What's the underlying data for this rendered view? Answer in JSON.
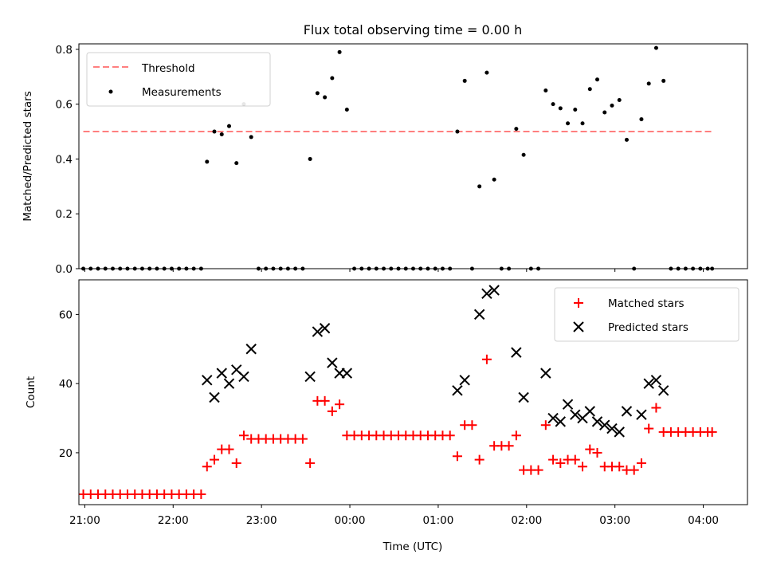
{
  "chart_data": [
    {
      "type": "scatter",
      "title": "Flux total observing time = 0.00 h",
      "xlabel": "",
      "ylabel": "Matched/Predicted stars",
      "xlim": [
        "20:56",
        "04:30"
      ],
      "ylim": [
        0,
        0.82
      ],
      "yticks": [
        "0.0",
        "0.2",
        "0.4",
        "0.6",
        "0.8"
      ],
      "grid": false,
      "legend_position": "top-left",
      "threshold": {
        "name": "Threshold",
        "value": 0.5,
        "x_range": [
          "20:59",
          "04:07"
        ],
        "color": "#ff7f7f",
        "style": "dashed"
      },
      "series": [
        {
          "name": "Measurements",
          "color": "#000000",
          "marker": "dot",
          "points": [
            [
              "20:59",
              0
            ],
            [
              "21:04",
              0
            ],
            [
              "21:09",
              0
            ],
            [
              "21:14",
              0
            ],
            [
              "21:19",
              0
            ],
            [
              "21:24",
              0
            ],
            [
              "21:29",
              0
            ],
            [
              "21:34",
              0
            ],
            [
              "21:39",
              0
            ],
            [
              "21:44",
              0
            ],
            [
              "21:49",
              0
            ],
            [
              "21:54",
              0
            ],
            [
              "21:59",
              0
            ],
            [
              "22:04",
              0
            ],
            [
              "22:09",
              0
            ],
            [
              "22:14",
              0
            ],
            [
              "22:19",
              0
            ],
            [
              "22:23",
              0.39
            ],
            [
              "22:28",
              0.5
            ],
            [
              "22:33",
              0.49
            ],
            [
              "22:38",
              0.52
            ],
            [
              "22:43",
              0.385
            ],
            [
              "22:48",
              0.6
            ],
            [
              "22:53",
              0.48
            ],
            [
              "22:58",
              0
            ],
            [
              "23:03",
              0
            ],
            [
              "23:08",
              0
            ],
            [
              "23:13",
              0
            ],
            [
              "23:18",
              0
            ],
            [
              "23:23",
              0
            ],
            [
              "23:28",
              0
            ],
            [
              "23:33",
              0.4
            ],
            [
              "23:38",
              0.64
            ],
            [
              "23:43",
              0.625
            ],
            [
              "23:48",
              0.695
            ],
            [
              "23:53",
              0.79
            ],
            [
              "23:58",
              0.58
            ],
            [
              "00:03",
              0
            ],
            [
              "00:08",
              0
            ],
            [
              "00:13",
              0
            ],
            [
              "00:18",
              0
            ],
            [
              "00:23",
              0
            ],
            [
              "00:28",
              0
            ],
            [
              "00:33",
              0
            ],
            [
              "00:38",
              0
            ],
            [
              "00:43",
              0
            ],
            [
              "00:48",
              0
            ],
            [
              "00:53",
              0
            ],
            [
              "00:58",
              0
            ],
            [
              "01:03",
              0
            ],
            [
              "01:08",
              0
            ],
            [
              "01:13",
              0.5
            ],
            [
              "01:18",
              0.685
            ],
            [
              "01:23",
              0
            ],
            [
              "01:28",
              0.3
            ],
            [
              "01:33",
              0.715
            ],
            [
              "01:38",
              0.325
            ],
            [
              "01:43",
              0
            ],
            [
              "01:48",
              0
            ],
            [
              "01:53",
              0.51
            ],
            [
              "01:58",
              0.415
            ],
            [
              "02:03",
              0
            ],
            [
              "02:08",
              0
            ],
            [
              "02:13",
              0.65
            ],
            [
              "02:18",
              0.6
            ],
            [
              "02:23",
              0.585
            ],
            [
              "02:28",
              0.53
            ],
            [
              "02:33",
              0.58
            ],
            [
              "02:38",
              0.53
            ],
            [
              "02:43",
              0.655
            ],
            [
              "02:48",
              0.69
            ],
            [
              "02:53",
              0.57
            ],
            [
              "02:58",
              0.595
            ],
            [
              "03:03",
              0.615
            ],
            [
              "03:08",
              0.47
            ],
            [
              "03:13",
              0
            ],
            [
              "03:18",
              0.545
            ],
            [
              "03:23",
              0.675
            ],
            [
              "03:28",
              0.805
            ],
            [
              "03:33",
              0.685
            ],
            [
              "03:38",
              0
            ],
            [
              "03:43",
              0
            ],
            [
              "03:48",
              0
            ],
            [
              "03:53",
              0
            ],
            [
              "03:58",
              0
            ],
            [
              "04:03",
              0
            ],
            [
              "04:06",
              0
            ]
          ]
        }
      ]
    },
    {
      "type": "scatter",
      "title": "",
      "xlabel": "Time (UTC)",
      "ylabel": "Count",
      "xlim": [
        "20:56",
        "04:30"
      ],
      "ylim": [
        5,
        70
      ],
      "yticks": [
        "20",
        "40",
        "60"
      ],
      "xticks": [
        "21:00",
        "22:00",
        "23:00",
        "00:00",
        "01:00",
        "02:00",
        "03:00",
        "04:00"
      ],
      "grid": false,
      "legend_position": "top-right",
      "series": [
        {
          "name": "Matched stars",
          "color": "#ff0000",
          "marker": "plus",
          "points": [
            [
              "20:59",
              8
            ],
            [
              "21:04",
              8
            ],
            [
              "21:09",
              8
            ],
            [
              "21:14",
              8
            ],
            [
              "21:19",
              8
            ],
            [
              "21:24",
              8
            ],
            [
              "21:29",
              8
            ],
            [
              "21:34",
              8
            ],
            [
              "21:39",
              8
            ],
            [
              "21:44",
              8
            ],
            [
              "21:49",
              8
            ],
            [
              "21:54",
              8
            ],
            [
              "21:59",
              8
            ],
            [
              "22:04",
              8
            ],
            [
              "22:09",
              8
            ],
            [
              "22:14",
              8
            ],
            [
              "22:19",
              8
            ],
            [
              "22:23",
              16
            ],
            [
              "22:28",
              18
            ],
            [
              "22:33",
              21
            ],
            [
              "22:38",
              21
            ],
            [
              "22:43",
              17
            ],
            [
              "22:48",
              25
            ],
            [
              "22:53",
              24
            ],
            [
              "22:58",
              24
            ],
            [
              "23:03",
              24
            ],
            [
              "23:08",
              24
            ],
            [
              "23:13",
              24
            ],
            [
              "23:18",
              24
            ],
            [
              "23:23",
              24
            ],
            [
              "23:28",
              24
            ],
            [
              "23:33",
              17
            ],
            [
              "23:38",
              35
            ],
            [
              "23:43",
              35
            ],
            [
              "23:48",
              32
            ],
            [
              "23:53",
              34
            ],
            [
              "23:58",
              25
            ],
            [
              "00:03",
              25
            ],
            [
              "00:08",
              25
            ],
            [
              "00:13",
              25
            ],
            [
              "00:18",
              25
            ],
            [
              "00:23",
              25
            ],
            [
              "00:28",
              25
            ],
            [
              "00:33",
              25
            ],
            [
              "00:38",
              25
            ],
            [
              "00:43",
              25
            ],
            [
              "00:48",
              25
            ],
            [
              "00:53",
              25
            ],
            [
              "00:58",
              25
            ],
            [
              "01:03",
              25
            ],
            [
              "01:08",
              25
            ],
            [
              "01:13",
              19
            ],
            [
              "01:18",
              28
            ],
            [
              "01:23",
              28
            ],
            [
              "01:28",
              18
            ],
            [
              "01:33",
              47
            ],
            [
              "01:38",
              22
            ],
            [
              "01:43",
              22
            ],
            [
              "01:48",
              22
            ],
            [
              "01:53",
              25
            ],
            [
              "01:58",
              15
            ],
            [
              "02:03",
              15
            ],
            [
              "02:08",
              15
            ],
            [
              "02:13",
              28
            ],
            [
              "02:18",
              18
            ],
            [
              "02:23",
              17
            ],
            [
              "02:28",
              18
            ],
            [
              "02:33",
              18
            ],
            [
              "02:38",
              16
            ],
            [
              "02:43",
              21
            ],
            [
              "02:48",
              20
            ],
            [
              "02:53",
              16
            ],
            [
              "02:58",
              16
            ],
            [
              "03:03",
              16
            ],
            [
              "03:08",
              15
            ],
            [
              "03:13",
              15
            ],
            [
              "03:18",
              17
            ],
            [
              "03:23",
              27
            ],
            [
              "03:28",
              33
            ],
            [
              "03:33",
              26
            ],
            [
              "03:38",
              26
            ],
            [
              "03:43",
              26
            ],
            [
              "03:48",
              26
            ],
            [
              "03:53",
              26
            ],
            [
              "03:58",
              26
            ],
            [
              "04:03",
              26
            ],
            [
              "04:06",
              26
            ]
          ]
        },
        {
          "name": "Predicted stars",
          "color": "#000000",
          "marker": "x",
          "points": [
            [
              "22:23",
              41
            ],
            [
              "22:28",
              36
            ],
            [
              "22:33",
              43
            ],
            [
              "22:38",
              40
            ],
            [
              "22:43",
              44
            ],
            [
              "22:48",
              42
            ],
            [
              "22:53",
              50
            ],
            [
              "23:33",
              42
            ],
            [
              "23:38",
              55
            ],
            [
              "23:43",
              56
            ],
            [
              "23:48",
              46
            ],
            [
              "23:53",
              43
            ],
            [
              "23:58",
              43
            ],
            [
              "01:13",
              38
            ],
            [
              "01:18",
              41
            ],
            [
              "01:28",
              60
            ],
            [
              "01:33",
              66
            ],
            [
              "01:38",
              67
            ],
            [
              "01:53",
              49
            ],
            [
              "01:58",
              36
            ],
            [
              "02:13",
              43
            ],
            [
              "02:18",
              30
            ],
            [
              "02:23",
              29
            ],
            [
              "02:28",
              34
            ],
            [
              "02:33",
              31
            ],
            [
              "02:38",
              30
            ],
            [
              "02:43",
              32
            ],
            [
              "02:48",
              29
            ],
            [
              "02:53",
              28
            ],
            [
              "02:58",
              27
            ],
            [
              "03:03",
              26
            ],
            [
              "03:08",
              32
            ],
            [
              "03:18",
              31
            ],
            [
              "03:23",
              40
            ],
            [
              "03:28",
              41
            ],
            [
              "03:33",
              38
            ]
          ]
        }
      ]
    }
  ]
}
